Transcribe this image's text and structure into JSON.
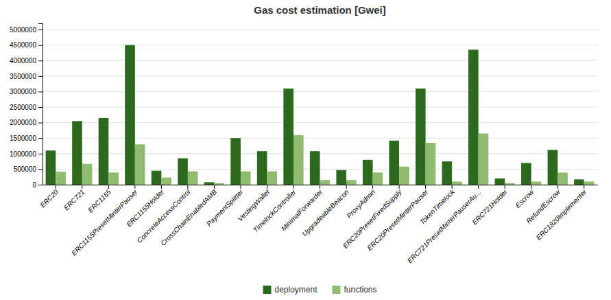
{
  "chart_data": {
    "type": "bar",
    "title": "Gas cost estimation [Gwei]",
    "categories": [
      "ERC20",
      "ERC721",
      "ERC1155",
      "ERC1155PresetMinterPauser",
      "ERC1155Holder",
      "ConcreteAccessControl",
      "CrossChainEnabledAMB",
      "PaymentSplitter",
      "VestingWallet",
      "TimelockController",
      "MinimalForwarder",
      "UpgradeableBeacon",
      "ProxyAdmin",
      "ERC20PresetFixedSupply",
      "ERC20PresetMinterPauser",
      "TokenTimelock",
      "ERC721PresetMinterPauserAu...",
      "ERC721Holder",
      "Escrow",
      "RefundEscrow",
      "ERC1820Implementer"
    ],
    "series": [
      {
        "name": "deployment",
        "color": "#2d6a1e",
        "values": [
          1100000,
          2050000,
          2150000,
          4500000,
          450000,
          850000,
          80000,
          1500000,
          1080000,
          3100000,
          1080000,
          470000,
          800000,
          1420000,
          3100000,
          750000,
          4350000,
          200000,
          700000,
          1120000,
          170000
        ]
      },
      {
        "name": "functions",
        "color": "#8fbc6e",
        "values": [
          420000,
          670000,
          390000,
          1300000,
          230000,
          430000,
          50000,
          430000,
          430000,
          1600000,
          150000,
          150000,
          390000,
          580000,
          1350000,
          100000,
          1650000,
          50000,
          100000,
          390000,
          100000
        ]
      }
    ],
    "ylim": [
      0,
      5200000
    ],
    "yticks": [
      0,
      500000,
      1000000,
      1500000,
      2000000,
      2500000,
      3000000,
      3500000,
      4000000,
      4500000,
      5000000
    ],
    "grid": true,
    "legend": "bottom"
  }
}
